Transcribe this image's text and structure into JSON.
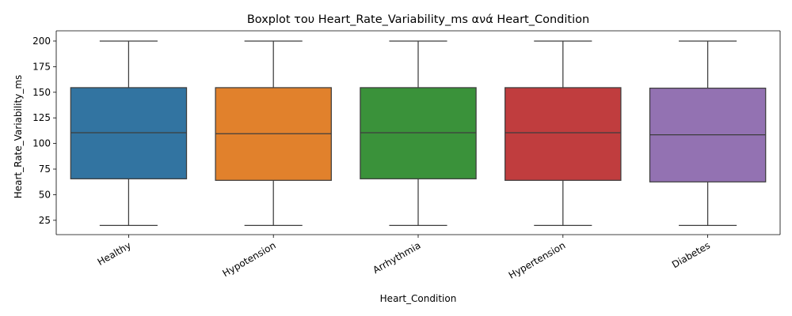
{
  "chart_data": {
    "type": "boxplot",
    "title": "Boxplot του Heart_Rate_Variability_ms ανά Heart_Condition",
    "xlabel": "Heart_Condition",
    "ylabel": "Heart_Rate_Variability_ms",
    "ylim": [
      11,
      210
    ],
    "yticks": [
      25,
      50,
      75,
      100,
      125,
      150,
      175,
      200
    ],
    "xtick_rotation": 30,
    "grid": false,
    "legend": "none",
    "categories": [
      "Healthy",
      "Hypotension",
      "Arrhythmia",
      "Hypertension",
      "Diabetes"
    ],
    "colors": [
      "#3274a1",
      "#e1812c",
      "#3a923a",
      "#c03d3e",
      "#9372b2"
    ],
    "boxes": [
      {
        "category": "Healthy",
        "min": 20,
        "q1": 65.5,
        "median": 110.5,
        "q3": 154.5,
        "max": 200
      },
      {
        "category": "Hypotension",
        "min": 20,
        "q1": 64,
        "median": 109.5,
        "q3": 154.5,
        "max": 200
      },
      {
        "category": "Arrhythmia",
        "min": 20,
        "q1": 65.5,
        "median": 110.5,
        "q3": 154.5,
        "max": 200
      },
      {
        "category": "Hypertension",
        "min": 20,
        "q1": 64,
        "median": 110.5,
        "q3": 154.5,
        "max": 200
      },
      {
        "category": "Diabetes",
        "min": 20,
        "q1": 62.5,
        "median": 108.5,
        "q3": 154,
        "max": 200
      }
    ]
  }
}
